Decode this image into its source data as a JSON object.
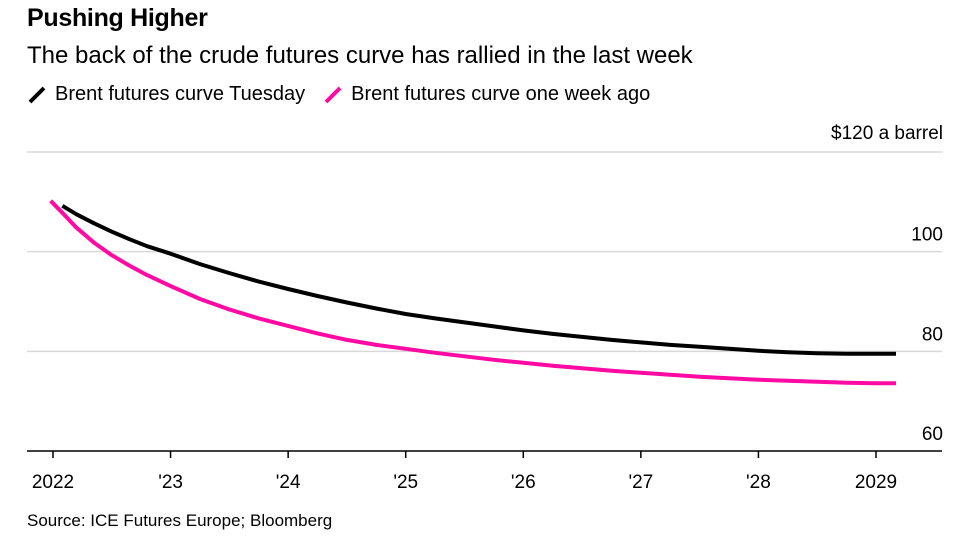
{
  "header": {
    "title": "Pushing Higher",
    "subtitle": "The back of the crude futures curve has rallied in the last week"
  },
  "legend": [
    {
      "label": "Brent futures curve Tuesday",
      "color": "#000000"
    },
    {
      "label": "Brent futures curve one week ago",
      "color": "#ff0aa2"
    }
  ],
  "footer": {
    "source": "Source: ICE Futures Europe; Bloomberg"
  },
  "chart_data": {
    "type": "line",
    "title": "Pushing Higher",
    "subtitle": "The back of the crude futures curve has rallied in the last week",
    "xlabel": "",
    "ylabel": "",
    "y_unit_label": "$120 a barrel",
    "xlim": [
      2021.9,
      2029.3
    ],
    "ylim": [
      60,
      120
    ],
    "x_ticks": [
      {
        "value": 2022.0,
        "label": "2022"
      },
      {
        "value": 2023.0,
        "label": "'23"
      },
      {
        "value": 2024.0,
        "label": "'24"
      },
      {
        "value": 2025.0,
        "label": "'25"
      },
      {
        "value": 2026.0,
        "label": "'26"
      },
      {
        "value": 2027.0,
        "label": "'27"
      },
      {
        "value": 2028.0,
        "label": "'28"
      },
      {
        "value": 2029.0,
        "label": "2029"
      }
    ],
    "y_ticks": [
      {
        "value": 120,
        "label": "$120 a barrel"
      },
      {
        "value": 100,
        "label": "100"
      },
      {
        "value": 80,
        "label": "80"
      },
      {
        "value": 60,
        "label": "60"
      }
    ],
    "grid": true,
    "legend_position": "top-left",
    "series": [
      {
        "name": "Brent futures curve Tuesday",
        "color": "#000000",
        "x": [
          2022.08,
          2022.2,
          2022.35,
          2022.5,
          2022.65,
          2022.8,
          2023.0,
          2023.25,
          2023.5,
          2023.75,
          2024.0,
          2024.25,
          2024.5,
          2024.75,
          2025.0,
          2025.25,
          2025.5,
          2025.75,
          2026.0,
          2026.25,
          2026.5,
          2026.75,
          2027.0,
          2027.25,
          2027.5,
          2027.75,
          2028.0,
          2028.25,
          2028.5,
          2028.75,
          2029.0,
          2029.17
        ],
        "y": [
          109.2,
          107.5,
          105.7,
          104.0,
          102.5,
          101.1,
          99.6,
          97.5,
          95.7,
          94.0,
          92.5,
          91.1,
          89.8,
          88.6,
          87.5,
          86.6,
          85.8,
          85.0,
          84.2,
          83.5,
          82.9,
          82.3,
          81.8,
          81.3,
          80.9,
          80.5,
          80.1,
          79.8,
          79.6,
          79.5,
          79.5,
          79.5
        ]
      },
      {
        "name": "Brent futures curve one week ago",
        "color": "#ff0aa2",
        "x": [
          2021.98,
          2022.08,
          2022.2,
          2022.35,
          2022.5,
          2022.65,
          2022.8,
          2023.0,
          2023.25,
          2023.5,
          2023.75,
          2024.0,
          2024.25,
          2024.5,
          2024.75,
          2025.0,
          2025.25,
          2025.5,
          2025.75,
          2026.0,
          2026.25,
          2026.5,
          2026.75,
          2027.0,
          2027.25,
          2027.5,
          2027.75,
          2028.0,
          2028.25,
          2028.5,
          2028.75,
          2029.0,
          2029.17
        ],
        "y": [
          110.2,
          107.8,
          104.8,
          101.8,
          99.3,
          97.2,
          95.3,
          93.1,
          90.5,
          88.4,
          86.6,
          85.1,
          83.6,
          82.3,
          81.3,
          80.5,
          79.7,
          79.0,
          78.3,
          77.7,
          77.1,
          76.6,
          76.1,
          75.7,
          75.3,
          74.9,
          74.6,
          74.3,
          74.1,
          73.9,
          73.7,
          73.6,
          73.6
        ]
      }
    ]
  }
}
